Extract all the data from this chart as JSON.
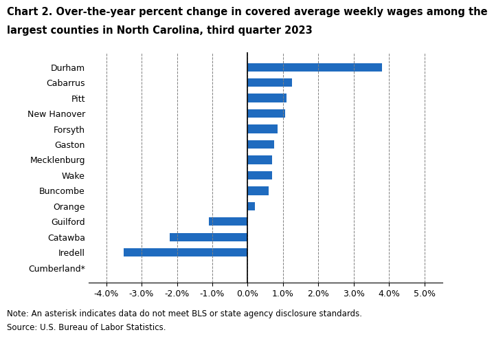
{
  "title_line1": "Chart 2. Over-the-year percent change in covered average weekly wages among the",
  "title_line2": "largest counties in North Carolina, third quarter 2023",
  "categories": [
    "Cumberland*",
    "Iredell",
    "Catawba",
    "Guilford",
    "Orange",
    "Buncombe",
    "Wake",
    "Mecklenburg",
    "Gaston",
    "Forsyth",
    "New Hanover",
    "Pitt",
    "Cabarrus",
    "Durham"
  ],
  "values": [
    0.0,
    -3.5,
    -2.2,
    -1.1,
    0.2,
    0.6,
    0.7,
    0.7,
    0.75,
    0.85,
    1.05,
    1.1,
    1.25,
    3.8
  ],
  "bar_color": "#1f6bbf",
  "xlim": [
    -4.5,
    5.5
  ],
  "xticks": [
    -4.0,
    -3.0,
    -2.0,
    -1.0,
    0.0,
    1.0,
    2.0,
    3.0,
    4.0,
    5.0
  ],
  "note": "Note: An asterisk indicates data do not meet BLS or state agency disclosure standards.",
  "source": "Source: U.S. Bureau of Labor Statistics.",
  "background_color": "#ffffff",
  "title_fontsize": 10.5,
  "axis_fontsize": 9,
  "note_fontsize": 8.5
}
